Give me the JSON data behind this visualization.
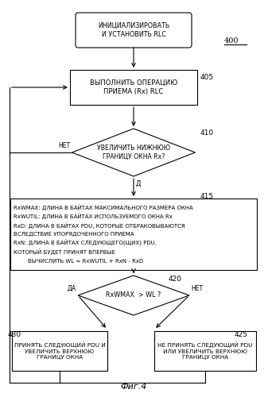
{
  "bg_color": "#ffffff",
  "fig_caption": "Фиг.4",
  "label_400": "400",
  "label_405": "405",
  "label_410": "410",
  "label_415": "415",
  "label_420": "420",
  "label_430": "430",
  "label_425": "425",
  "text_start": "ИНИЦИАЛИЗИРОВАТЬ\nИ УСТАНОВИТЬ RLC",
  "text_box1": "ВЫПОЛНИТЬ ОПЕРАЦИЮ\nПРИЕМА (Rx) RLC",
  "text_d1": "УВЕЛИЧИТЬ НИЖНЮЮ\nГРАНИЦУ ОКНА Rx?",
  "text_box2_lines": [
    "RxWMAX: ДЛИНА В БАЙТАХ МАКСИМАЛЬНОГО РАЗМЕРА ОКНА",
    "RxWUTIL: ДЛИНА В БАЙТАХ ИСПОЛЬЗУЕМОГО ОКНА Rx",
    "RxD: ДЛИНА В БАЙТАХ PDU, КОТОРЫЕ ОТБРАКОВЫВАЮТСЯ",
    "ВСЛЕДСТВИЕ УПОРЯДОЧЕННОГО ПРИЕМА",
    "RxN: ДЛИНА В БАЙТАХ СЛЕДУЮЩЕГО(ЩИХ) PDU,",
    "КОТОРЫЙ БУДЕТ ПРИНЯТ ВПЕРВЫЕ",
    "        ВЫЧИСЛИТЬ WL = RxWUTIL + RxN - RxD"
  ],
  "text_d2": "RxWMAX  > WL ?",
  "text_box3": "ПРИНЯТЬ СЛЕДУЮЩИЙ PDU И\nУВЕЛИЧИТЬ ВЕРХНЮЮ\nГРАНИЦУ ОКНА",
  "text_box4": "НЕ ПРИНЯТЬ СЛЕДУЮЩИЙ PDU\nИЛИ УВЕЛИЧИТЬ ВЕРХНЮЮ\nГРАНИЦУ ОКНА",
  "label_da1": "ДА",
  "label_net1": "НЕТ",
  "label_da2": "ДА",
  "label_net2": "НЕТ",
  "label_d": "Д"
}
